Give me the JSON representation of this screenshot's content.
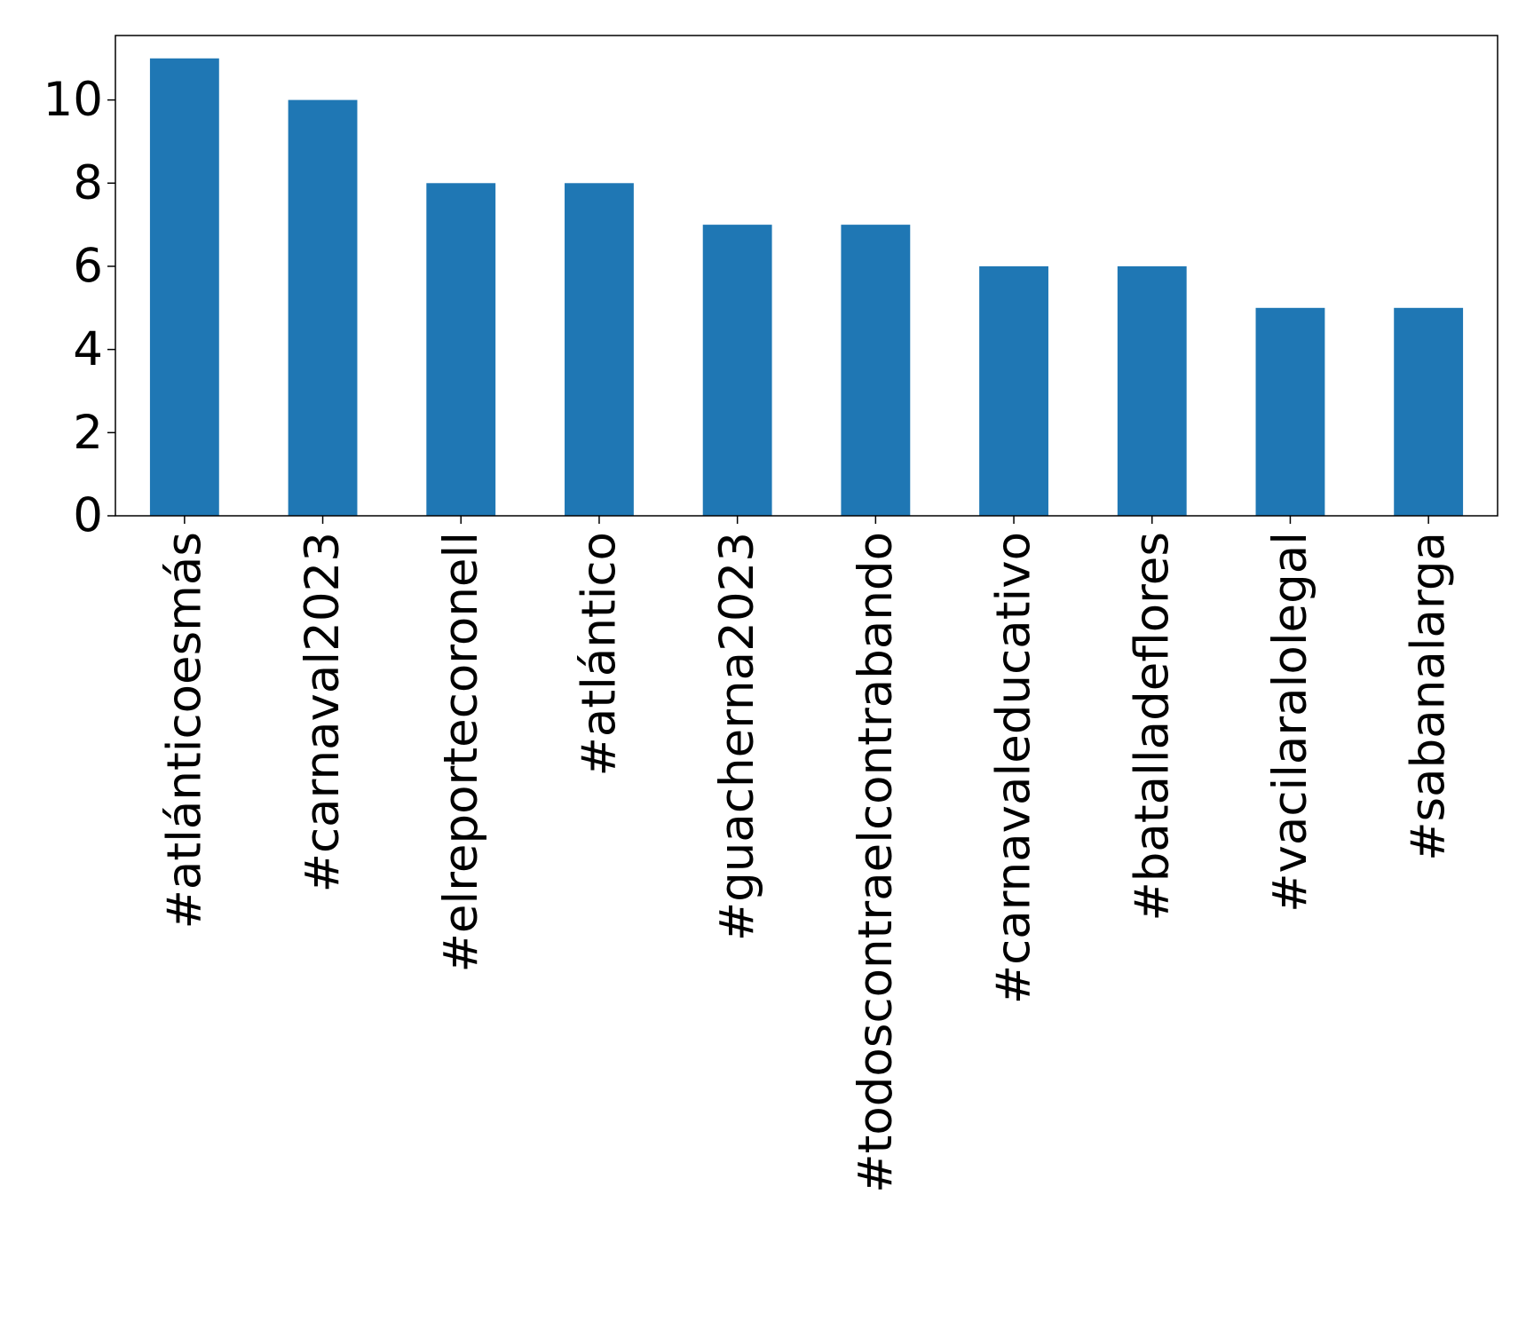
{
  "chart_data": {
    "type": "bar",
    "categories": [
      "#atlánticoesmás",
      "#carnaval2023",
      "#elreportecoronell",
      "#atlántico",
      "#guacherna2023",
      "#todoscontraelcontrabando",
      "#carnavaleducativo",
      "#batalladeflores",
      "#vacilaralolegal",
      "#sabanalarga"
    ],
    "values": [
      11,
      10,
      8,
      8,
      7,
      7,
      6,
      6,
      5,
      5
    ],
    "color": "#1f77b4",
    "ylim": [
      0,
      11.55
    ],
    "yticks": [
      0,
      2,
      4,
      6,
      8,
      10
    ],
    "grid": false
  }
}
